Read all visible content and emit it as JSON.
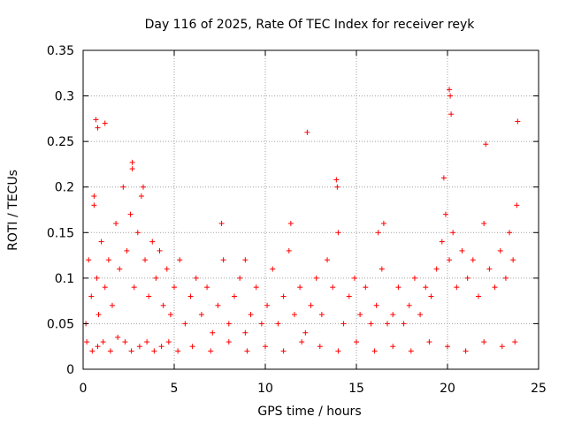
{
  "chart_data": {
    "type": "scatter",
    "title": "Day 116 of 2025, Rate Of TEC Index for receiver reyk",
    "xlabel": "GPS time / hours",
    "ylabel": "ROTI / TECUs",
    "xlim": [
      0,
      25
    ],
    "ylim": [
      0,
      0.35
    ],
    "grid": true,
    "marker": "+",
    "color": "#ff0000",
    "x_ticks": [
      0,
      5,
      10,
      15,
      20,
      25
    ],
    "x_tick_labels": [
      "0",
      "5",
      "10",
      "15",
      "20",
      "25"
    ],
    "y_ticks": [
      0,
      0.05,
      0.1,
      0.15,
      0.2,
      0.25,
      0.3,
      0.35
    ],
    "y_tick_labels": [
      "0",
      "0.05",
      "0.1",
      "0.15",
      "0.2",
      "0.25",
      "0.3",
      "0.35"
    ],
    "series": [
      {
        "name": "ROTI",
        "x": [
          0.15,
          0.3,
          0.45,
          0.6,
          0.75,
          0.85,
          1.0,
          1.2,
          1.4,
          1.6,
          1.8,
          2.0,
          2.2,
          2.4,
          2.6,
          2.7,
          2.8,
          3.0,
          3.2,
          3.4,
          3.6,
          3.8,
          4.0,
          4.2,
          4.4,
          4.6,
          4.8,
          5.0,
          5.3,
          5.6,
          5.9,
          6.2,
          6.5,
          6.8,
          7.1,
          7.4,
          7.7,
          8.0,
          8.3,
          8.6,
          8.9,
          9.2,
          9.5,
          9.8,
          10.1,
          10.4,
          10.7,
          11.0,
          11.3,
          11.6,
          11.9,
          12.2,
          12.5,
          12.8,
          13.1,
          13.4,
          13.7,
          14.0,
          14.3,
          14.6,
          14.9,
          15.2,
          15.5,
          15.8,
          16.1,
          16.4,
          16.7,
          17.0,
          17.3,
          17.6,
          17.9,
          18.2,
          18.5,
          18.8,
          19.1,
          19.4,
          19.7,
          19.9,
          20.1,
          20.3,
          20.5,
          20.8,
          21.1,
          21.4,
          21.7,
          22.0,
          22.3,
          22.6,
          22.9,
          23.2,
          23.4,
          23.6,
          23.8,
          0.2,
          0.5,
          0.8,
          1.1,
          1.5,
          1.9,
          2.3,
          2.65,
          3.1,
          3.5,
          3.9,
          4.3,
          4.7,
          5.2,
          6.0,
          7.0,
          8.0,
          9.0,
          10.0,
          11.0,
          12.0,
          13.0,
          14.0,
          15.0,
          16.0,
          17.0,
          18.0,
          19.0,
          20.0,
          21.0,
          22.0,
          23.0,
          23.7,
          0.7,
          0.8,
          1.2,
          12.3,
          20.1,
          20.15,
          20.2,
          13.9,
          13.95,
          0.6,
          2.7,
          3.3,
          22.1,
          23.85,
          11.4,
          19.8,
          16.5,
          16.2,
          7.6,
          8.9
        ],
        "y": [
          0.05,
          0.12,
          0.08,
          0.18,
          0.1,
          0.06,
          0.14,
          0.09,
          0.12,
          0.07,
          0.16,
          0.11,
          0.2,
          0.13,
          0.17,
          0.22,
          0.09,
          0.15,
          0.19,
          0.12,
          0.08,
          0.14,
          0.1,
          0.13,
          0.07,
          0.11,
          0.06,
          0.09,
          0.12,
          0.05,
          0.08,
          0.1,
          0.06,
          0.09,
          0.04,
          0.07,
          0.12,
          0.05,
          0.08,
          0.1,
          0.04,
          0.06,
          0.09,
          0.05,
          0.07,
          0.11,
          0.05,
          0.08,
          0.13,
          0.06,
          0.09,
          0.04,
          0.07,
          0.1,
          0.06,
          0.12,
          0.09,
          0.15,
          0.05,
          0.08,
          0.1,
          0.06,
          0.09,
          0.05,
          0.07,
          0.11,
          0.05,
          0.06,
          0.09,
          0.05,
          0.07,
          0.1,
          0.06,
          0.09,
          0.08,
          0.11,
          0.14,
          0.17,
          0.12,
          0.15,
          0.09,
          0.13,
          0.1,
          0.12,
          0.08,
          0.16,
          0.11,
          0.09,
          0.13,
          0.1,
          0.15,
          0.12,
          0.18,
          0.03,
          0.02,
          0.025,
          0.03,
          0.02,
          0.035,
          0.03,
          0.02,
          0.025,
          0.03,
          0.02,
          0.025,
          0.03,
          0.02,
          0.025,
          0.02,
          0.03,
          0.02,
          0.025,
          0.02,
          0.03,
          0.025,
          0.02,
          0.03,
          0.02,
          0.025,
          0.02,
          0.03,
          0.025,
          0.02,
          0.03,
          0.025,
          0.03,
          0.274,
          0.265,
          0.27,
          0.26,
          0.307,
          0.3,
          0.28,
          0.208,
          0.2,
          0.19,
          0.227,
          0.2,
          0.247,
          0.272,
          0.16,
          0.21,
          0.16,
          0.15,
          0.16,
          0.12
        ]
      }
    ]
  }
}
